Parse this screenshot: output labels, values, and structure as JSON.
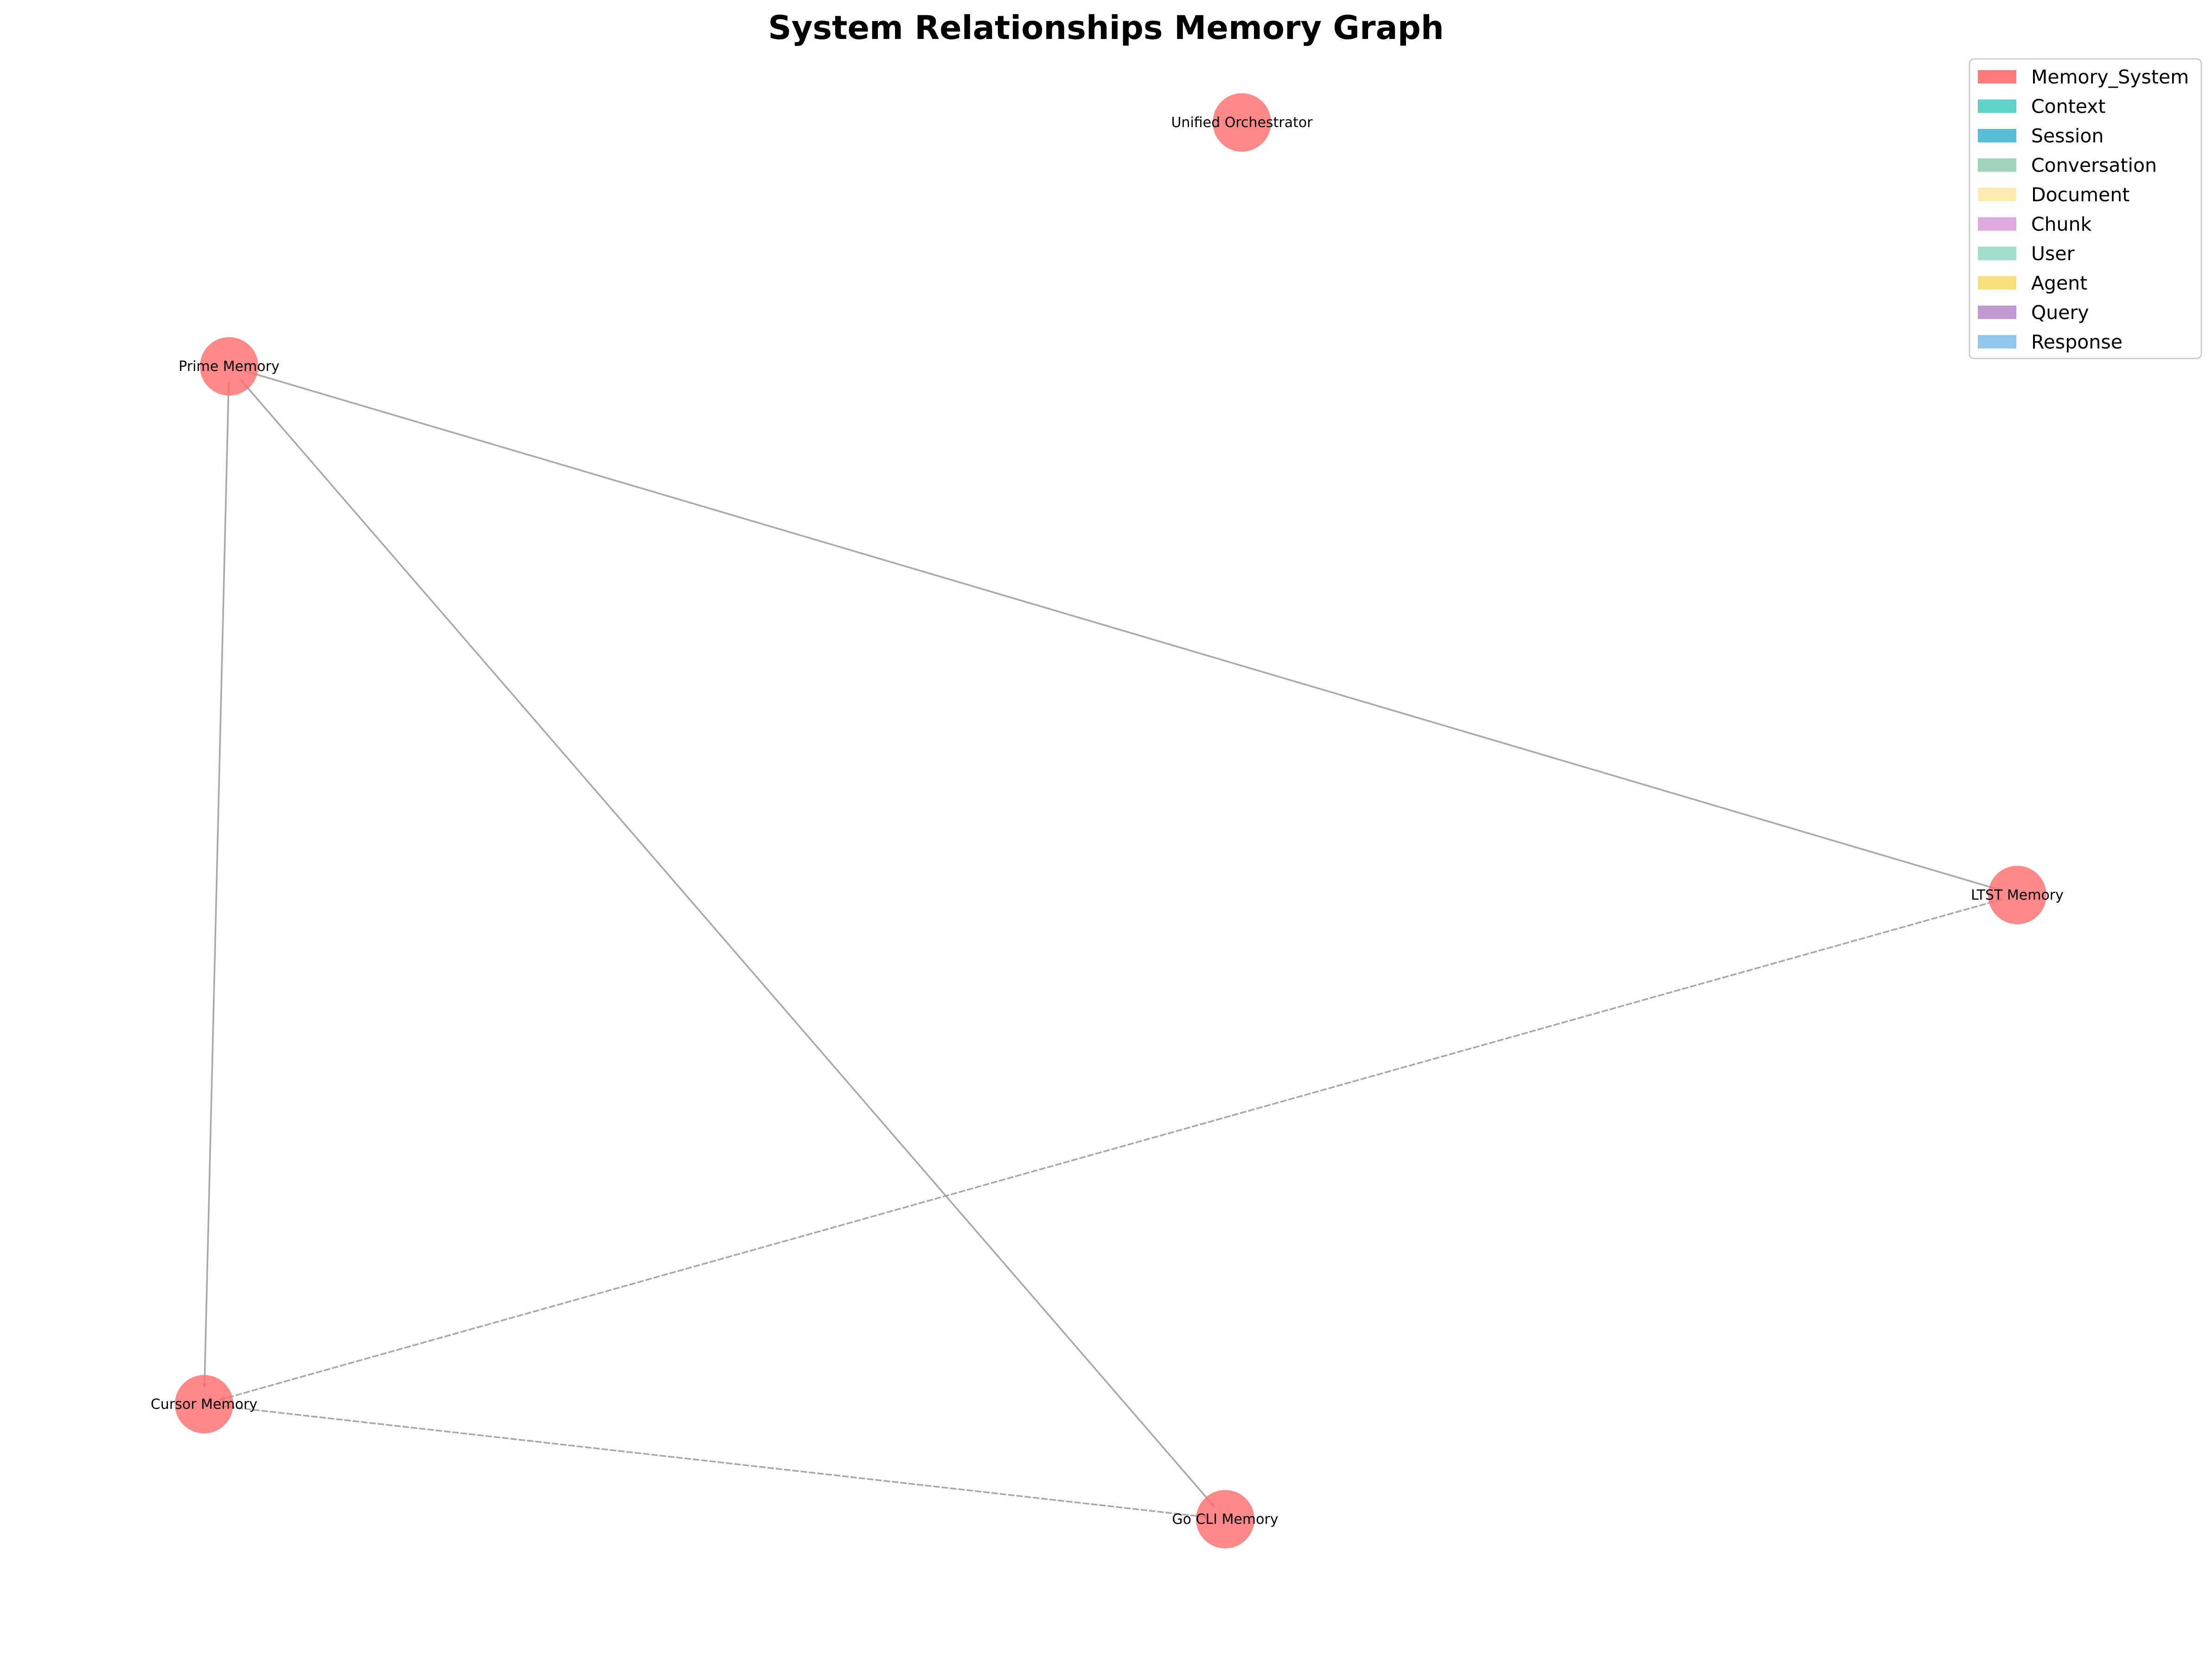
{
  "title": "System Relationships Memory Graph",
  "colors": {
    "node_fill": "#ff6b6b",
    "edge": "#999999"
  },
  "nodes": [
    {
      "id": "unified",
      "label": "Unified Orchestrator",
      "type": "Memory_System"
    },
    {
      "id": "prime",
      "label": "Prime Memory",
      "type": "Memory_System"
    },
    {
      "id": "ltst",
      "label": "LTST Memory",
      "type": "Memory_System"
    },
    {
      "id": "cursor",
      "label": "Cursor Memory",
      "type": "Memory_System"
    },
    {
      "id": "gocli",
      "label": "Go CLI Memory",
      "type": "Memory_System"
    }
  ],
  "edges": [
    {
      "source": "prime",
      "target": "ltst",
      "style": "solid"
    },
    {
      "source": "prime",
      "target": "cursor",
      "style": "solid"
    },
    {
      "source": "prime",
      "target": "gocli",
      "style": "solid"
    },
    {
      "source": "ltst",
      "target": "cursor",
      "style": "dashed"
    },
    {
      "source": "cursor",
      "target": "gocli",
      "style": "dashed"
    }
  ],
  "legend": [
    {
      "label": "Memory_System",
      "color": "#ff6b6b"
    },
    {
      "label": "Context",
      "color": "#4ecdc4"
    },
    {
      "label": "Session",
      "color": "#45b7d1"
    },
    {
      "label": "Conversation",
      "color": "#96ceb4"
    },
    {
      "label": "Document",
      "color": "#ffeaa7"
    },
    {
      "label": "Chunk",
      "color": "#dda0dd"
    },
    {
      "label": "User",
      "color": "#98d8c8"
    },
    {
      "label": "Agent",
      "color": "#f7dc6f"
    },
    {
      "label": "Query",
      "color": "#bb8fce"
    },
    {
      "label": "Response",
      "color": "#85c1e9"
    }
  ]
}
